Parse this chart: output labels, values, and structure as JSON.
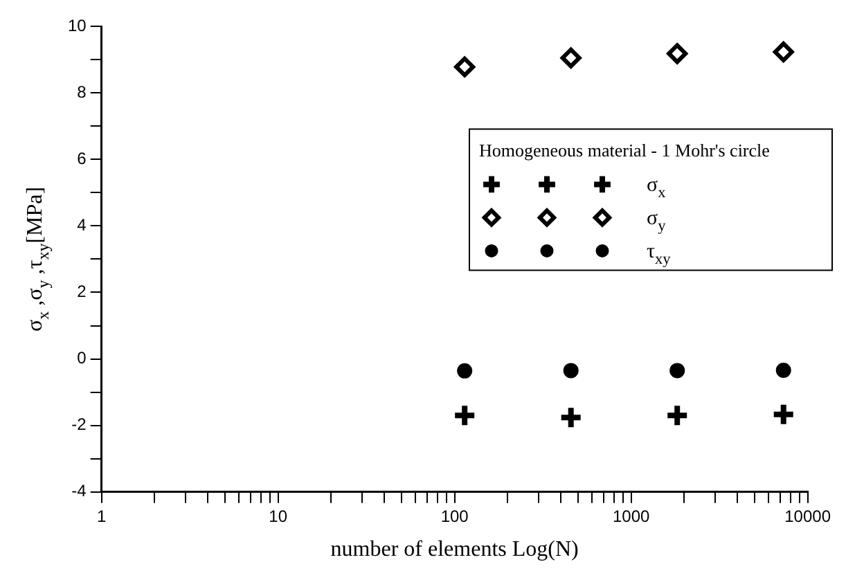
{
  "chart_data": {
    "type": "scatter",
    "xlabel": "number of elements Log(N)",
    "ylabel": "σ$_{x}$ ,σ$_{y}$ ,τ$_{xy}$[MPa]",
    "legend_title": "Homogeneous material - 1 Mohr's circle",
    "x": [
      114,
      456,
      1824,
      7296
    ],
    "series": [
      {
        "name": "σ$_{x}$",
        "color": "#000000",
        "marker": "cross",
        "values": [
          -1.7,
          -1.76,
          -1.7,
          -1.67
        ]
      },
      {
        "name": "σ$_{y}$",
        "color": "#000000",
        "marker": "diamond",
        "values": [
          8.78,
          9.05,
          9.18,
          9.23
        ]
      },
      {
        "name": "τ$_{xy}$",
        "color": "#000000",
        "marker": "circle",
        "values": [
          -0.36,
          -0.35,
          -0.35,
          -0.34
        ]
      }
    ],
    "log": "x",
    "xlim": [
      1,
      10000
    ],
    "xticks": [
      1,
      {
        "value": 2,
        "label": null
      },
      {
        "value": 3,
        "label": null
      },
      {
        "value": 4,
        "label": null
      },
      {
        "value": 5,
        "label": null
      },
      {
        "value": 6,
        "label": null
      },
      {
        "value": 7,
        "label": null
      },
      {
        "value": 8,
        "label": null
      },
      {
        "value": 9,
        "label": null
      },
      10,
      {
        "value": 20,
        "label": null
      },
      {
        "value": 30,
        "label": null
      },
      {
        "value": 40,
        "label": null
      },
      {
        "value": 50,
        "label": null
      },
      {
        "value": 60,
        "label": null
      },
      {
        "value": 70,
        "label": null
      },
      {
        "value": 80,
        "label": null
      },
      {
        "value": 90,
        "label": null
      },
      100,
      {
        "value": 200,
        "label": null
      },
      {
        "value": 300,
        "label": null
      },
      {
        "value": 400,
        "label": null
      },
      {
        "value": 500,
        "label": null
      },
      {
        "value": 600,
        "label": null
      },
      {
        "value": 700,
        "label": null
      },
      {
        "value": 800,
        "label": null
      },
      {
        "value": 900,
        "label": null
      },
      1000,
      {
        "value": 2000,
        "label": null
      },
      {
        "value": 3000,
        "label": null
      },
      {
        "value": 4000,
        "label": null
      },
      {
        "value": 5000,
        "label": null
      },
      {
        "value": 6000,
        "label": null
      },
      {
        "value": 7000,
        "label": null
      },
      {
        "value": 8000,
        "label": null
      },
      {
        "value": 9000,
        "label": null
      },
      10000
    ],
    "ylim": [
      -4,
      10
    ],
    "yticks": [
      -4,
      {
        "value": -3,
        "label": null
      },
      -2,
      {
        "value": -1,
        "label": null
      },
      0,
      {
        "value": 1,
        "label": null
      },
      2,
      {
        "value": 3,
        "label": null
      },
      4,
      {
        "value": 5,
        "label": null
      },
      6,
      {
        "value": 7,
        "label": null
      },
      8,
      {
        "value": 9,
        "label": null
      },
      10
    ],
    "grid": false,
    "legend": "right"
  }
}
